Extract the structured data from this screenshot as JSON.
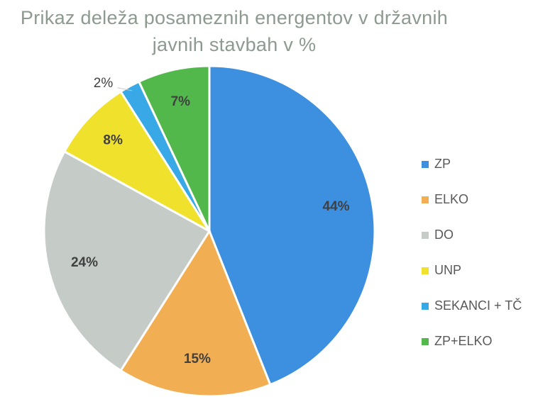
{
  "chart_data": {
    "type": "pie",
    "title": "Prikaz deleža posameznih energentov v državnih javnih stavbah v %",
    "categories": [
      "ZP",
      "ELKO",
      "DO",
      "UNP",
      "SEKANCI + TČ",
      "ZP+ELKO"
    ],
    "values": [
      44,
      15,
      24,
      8,
      2,
      7
    ],
    "value_labels": [
      "44%",
      "15%",
      "24%",
      "8%",
      "2%",
      "7%"
    ],
    "colors": [
      "#3d8fe0",
      "#f2ae52",
      "#c5cbc6",
      "#f0e22c",
      "#38a8e6",
      "#52b84c"
    ],
    "legend": "right"
  }
}
